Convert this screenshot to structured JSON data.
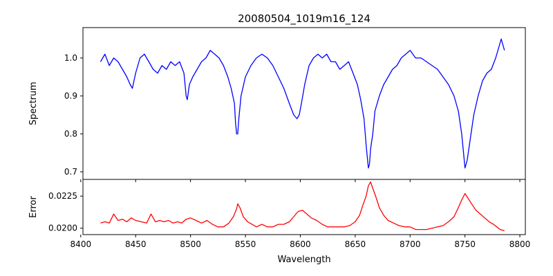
{
  "figure": {
    "title": "20080504_1019m16_124"
  },
  "chart_data": [
    {
      "type": "line",
      "panel": "top",
      "ylabel": "Spectrum",
      "xlim": [
        8402,
        8805
      ],
      "ylim": [
        0.68,
        1.08
      ],
      "xticks": [
        8400,
        8450,
        8500,
        8550,
        8600,
        8650,
        8700,
        8750,
        8800
      ],
      "yticks": [
        0.7,
        0.8,
        0.9,
        1.0
      ],
      "ytick_labels": [
        "0.7",
        "0.8",
        "0.9",
        "1.0"
      ],
      "grid": false,
      "series": [
        {
          "color": "#0000ff",
          "x": [
            8418,
            8422,
            8426,
            8430,
            8434,
            8438,
            8442,
            8445,
            8447,
            8450,
            8454,
            8458,
            8462,
            8466,
            8470,
            8474,
            8478,
            8482,
            8486,
            8490,
            8494,
            8496,
            8497,
            8499,
            8502,
            8506,
            8510,
            8514,
            8518,
            8522,
            8526,
            8530,
            8534,
            8537,
            8540,
            8541,
            8542,
            8543,
            8544,
            8546,
            8550,
            8555,
            8560,
            8565,
            8570,
            8575,
            8580,
            8585,
            8590,
            8594,
            8597,
            8599,
            8601,
            8604,
            8608,
            8612,
            8616,
            8620,
            8624,
            8628,
            8632,
            8636,
            8640,
            8644,
            8648,
            8652,
            8655,
            8658,
            8660,
            8662,
            8663,
            8664,
            8666,
            8668,
            8672,
            8676,
            8680,
            8684,
            8688,
            8692,
            8696,
            8700,
            8705,
            8710,
            8715,
            8720,
            8725,
            8730,
            8735,
            8740,
            8744,
            8747,
            8749,
            8750,
            8752,
            8755,
            8758,
            8762,
            8766,
            8770,
            8774,
            8778,
            8781,
            8783,
            8786
          ],
          "values": [
            0.99,
            1.01,
            0.98,
            1.0,
            0.99,
            0.97,
            0.95,
            0.93,
            0.92,
            0.96,
            1.0,
            1.01,
            0.99,
            0.97,
            0.96,
            0.98,
            0.97,
            0.99,
            0.98,
            0.99,
            0.96,
            0.9,
            0.89,
            0.93,
            0.95,
            0.97,
            0.99,
            1.0,
            1.02,
            1.01,
            1.0,
            0.98,
            0.95,
            0.92,
            0.88,
            0.83,
            0.8,
            0.8,
            0.84,
            0.9,
            0.95,
            0.98,
            1.0,
            1.01,
            1.0,
            0.98,
            0.95,
            0.92,
            0.88,
            0.85,
            0.84,
            0.85,
            0.88,
            0.93,
            0.98,
            1.0,
            1.01,
            1.0,
            1.01,
            0.99,
            0.99,
            0.97,
            0.98,
            0.99,
            0.96,
            0.93,
            0.89,
            0.84,
            0.77,
            0.71,
            0.72,
            0.76,
            0.8,
            0.86,
            0.9,
            0.93,
            0.95,
            0.97,
            0.98,
            1.0,
            1.01,
            1.02,
            1.0,
            1.0,
            0.99,
            0.98,
            0.97,
            0.95,
            0.93,
            0.9,
            0.86,
            0.8,
            0.74,
            0.71,
            0.73,
            0.79,
            0.85,
            0.9,
            0.94,
            0.96,
            0.97,
            1.0,
            1.03,
            1.05,
            1.02
          ]
        }
      ]
    },
    {
      "type": "line",
      "panel": "bottom",
      "xlabel": "Wavelength",
      "ylabel": "Error",
      "xlim": [
        8402,
        8805
      ],
      "ylim": [
        0.0195,
        0.0238
      ],
      "xticks": [
        8400,
        8450,
        8500,
        8550,
        8600,
        8650,
        8700,
        8750,
        8800
      ],
      "yticks": [
        0.02,
        0.0225
      ],
      "ytick_labels": [
        "0.0200",
        "0.0225"
      ],
      "grid": false,
      "series": [
        {
          "color": "#ff0000",
          "x": [
            8418,
            8422,
            8426,
            8430,
            8434,
            8438,
            8442,
            8446,
            8450,
            8455,
            8460,
            8464,
            8468,
            8472,
            8476,
            8480,
            8484,
            8488,
            8492,
            8496,
            8500,
            8505,
            8510,
            8515,
            8520,
            8525,
            8530,
            8535,
            8539,
            8542,
            8543,
            8545,
            8548,
            8552,
            8556,
            8560,
            8565,
            8570,
            8575,
            8580,
            8585,
            8590,
            8594,
            8598,
            8602,
            8606,
            8610,
            8615,
            8620,
            8625,
            8630,
            8635,
            8640,
            8645,
            8650,
            8654,
            8657,
            8660,
            8662,
            8664,
            8666,
            8669,
            8672,
            8676,
            8680,
            8685,
            8690,
            8695,
            8700,
            8705,
            8710,
            8715,
            8720,
            8725,
            8730,
            8735,
            8740,
            8744,
            8747,
            8750,
            8753,
            8756,
            8760,
            8764,
            8768,
            8772,
            8776,
            8779,
            8782,
            8786
          ],
          "values": [
            0.0204,
            0.0205,
            0.0204,
            0.0211,
            0.0206,
            0.0207,
            0.0205,
            0.0208,
            0.0206,
            0.0205,
            0.0204,
            0.0211,
            0.0205,
            0.0206,
            0.0205,
            0.0206,
            0.0204,
            0.0205,
            0.0204,
            0.0207,
            0.0208,
            0.0206,
            0.0204,
            0.0206,
            0.0203,
            0.0201,
            0.0201,
            0.0204,
            0.0209,
            0.0215,
            0.0219,
            0.0216,
            0.0209,
            0.0205,
            0.0203,
            0.0201,
            0.0203,
            0.0201,
            0.0201,
            0.0203,
            0.0203,
            0.0205,
            0.0209,
            0.0213,
            0.0214,
            0.0211,
            0.0208,
            0.0206,
            0.0203,
            0.0201,
            0.0201,
            0.0201,
            0.0201,
            0.0202,
            0.0205,
            0.021,
            0.0218,
            0.0225,
            0.0233,
            0.0236,
            0.0231,
            0.0224,
            0.0216,
            0.021,
            0.0206,
            0.0204,
            0.0202,
            0.0201,
            0.0201,
            0.0199,
            0.0199,
            0.0199,
            0.02,
            0.0201,
            0.0202,
            0.0205,
            0.0209,
            0.0216,
            0.0222,
            0.0227,
            0.0223,
            0.0219,
            0.0214,
            0.0211,
            0.0208,
            0.0205,
            0.0203,
            0.0201,
            0.0199,
            0.0198
          ]
        }
      ]
    }
  ]
}
